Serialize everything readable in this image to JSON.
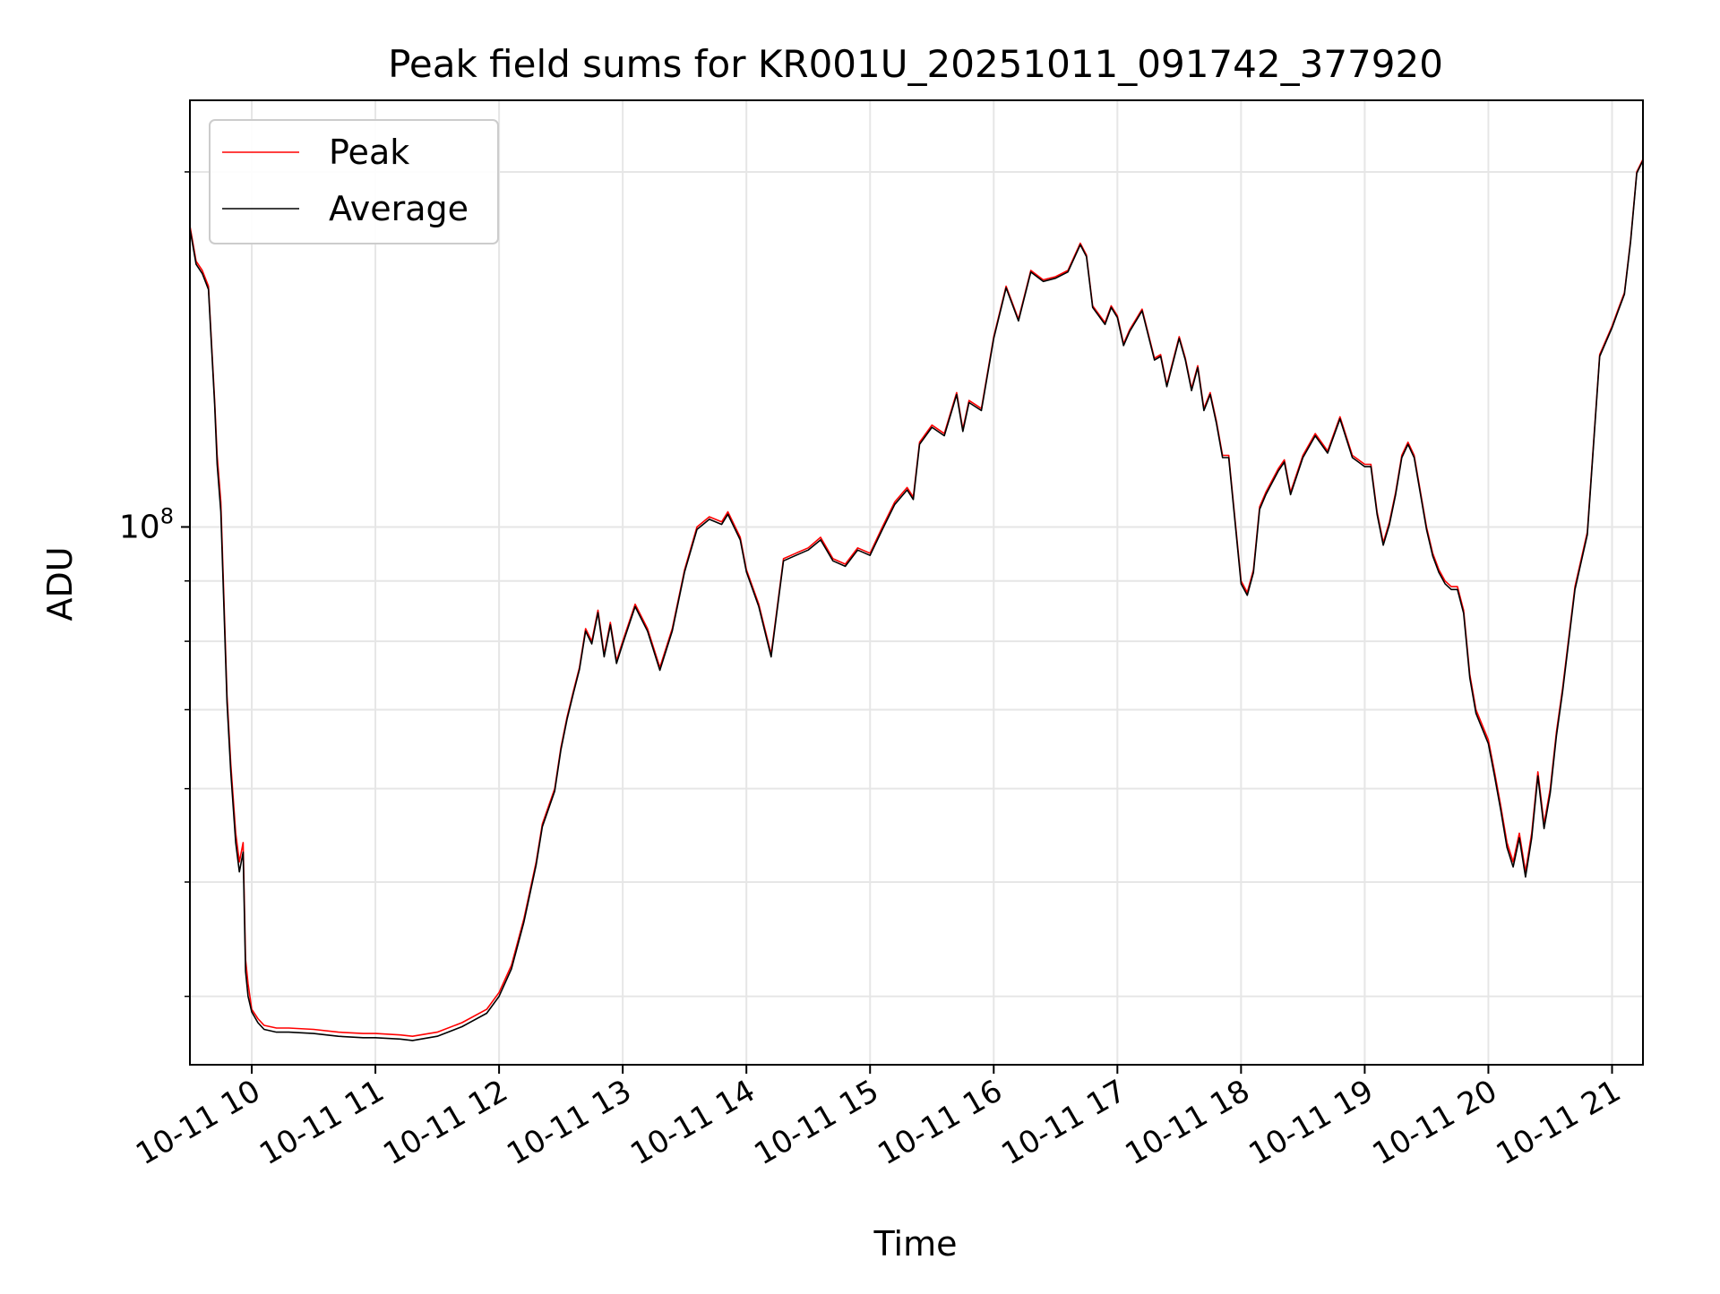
{
  "chart_data": {
    "type": "line",
    "title": "Peak field sums for KR001U_20251011_091742_377920",
    "xlabel": "Time",
    "ylabel": "ADU",
    "yscale": "log",
    "ylim": [
      35000000,
      230000000
    ],
    "xlim": [
      9.5,
      21.25
    ],
    "x_ticks": [
      10,
      11,
      12,
      13,
      14,
      15,
      16,
      17,
      18,
      19,
      20,
      21
    ],
    "x_tick_labels": [
      "10-11 10",
      "10-11 11",
      "10-11 12",
      "10-11 13",
      "10-11 14",
      "10-11 15",
      "10-11 16",
      "10-11 17",
      "10-11 18",
      "10-11 19",
      "10-11 20",
      "10-11 21"
    ],
    "y_major_ticks": [
      100000000
    ],
    "y_major_tick_labels": [
      "10",
      "8"
    ],
    "y_minor_ticks": [
      40000000,
      50000000,
      60000000,
      70000000,
      80000000,
      90000000,
      200000000
    ],
    "grid": true,
    "legend_position": "top-left",
    "series": [
      {
        "name": "Peak",
        "color": "#ff0000",
        "x": [
          9.5,
          9.55,
          9.6,
          9.65,
          9.7,
          9.72,
          9.75,
          9.8,
          9.83,
          9.87,
          9.9,
          9.93,
          9.95,
          9.97,
          10.0,
          10.05,
          10.1,
          10.2,
          10.3,
          10.5,
          10.7,
          10.9,
          11.0,
          11.2,
          11.3,
          11.5,
          11.7,
          11.9,
          12.0,
          12.1,
          12.2,
          12.3,
          12.35,
          12.45,
          12.5,
          12.55,
          12.6,
          12.65,
          12.7,
          12.75,
          12.8,
          12.85,
          12.9,
          12.95,
          13.0,
          13.1,
          13.2,
          13.3,
          13.4,
          13.5,
          13.6,
          13.7,
          13.8,
          13.85,
          13.95,
          14.0,
          14.1,
          14.2,
          14.3,
          14.4,
          14.5,
          14.6,
          14.7,
          14.8,
          14.9,
          15.0,
          15.1,
          15.2,
          15.3,
          15.35,
          15.4,
          15.5,
          15.6,
          15.7,
          15.75,
          15.8,
          15.85,
          15.9,
          16.0,
          16.1,
          16.2,
          16.3,
          16.4,
          16.5,
          16.6,
          16.7,
          16.75,
          16.8,
          16.9,
          16.95,
          17.0,
          17.05,
          17.1,
          17.2,
          17.3,
          17.35,
          17.4,
          17.5,
          17.55,
          17.6,
          17.65,
          17.7,
          17.75,
          17.8,
          17.85,
          17.9,
          18.0,
          18.05,
          18.1,
          18.15,
          18.2,
          18.3,
          18.35,
          18.4,
          18.5,
          18.6,
          18.7,
          18.8,
          18.9,
          18.95,
          19.0,
          19.05,
          19.1,
          19.15,
          19.2,
          19.25,
          19.3,
          19.35,
          19.4,
          19.5,
          19.55,
          19.6,
          19.65,
          19.7,
          19.75,
          19.8,
          19.85,
          19.9,
          20.0,
          20.05,
          20.1,
          20.15,
          20.2,
          20.25,
          20.3,
          20.35,
          20.4,
          20.45,
          20.5,
          20.55,
          20.6,
          20.7,
          20.8,
          20.9,
          21.0,
          21.05,
          21.1,
          21.15,
          21.2,
          21.25
        ],
        "values": [
          180000000,
          168000000,
          165000000,
          160000000,
          128000000,
          115000000,
          105000000,
          72000000,
          63000000,
          55000000,
          52000000,
          54000000,
          43000000,
          41000000,
          39000000,
          38300000,
          37800000,
          37600000,
          37600000,
          37500000,
          37300000,
          37200000,
          37200000,
          37100000,
          37000000,
          37300000,
          38000000,
          39000000,
          40300000,
          42500000,
          46500000,
          52000000,
          56000000,
          60000000,
          65000000,
          69000000,
          72500000,
          76000000,
          82000000,
          80000000,
          85000000,
          78000000,
          83000000,
          77000000,
          80000000,
          86000000,
          82000000,
          76000000,
          82000000,
          92000000,
          100000000,
          102000000,
          101000000,
          103000000,
          98000000,
          92000000,
          86000000,
          78000000,
          94000000,
          95000000,
          96000000,
          98000000,
          94000000,
          93000000,
          96000000,
          95000000,
          100000000,
          105000000,
          108000000,
          106000000,
          118000000,
          122000000,
          120000000,
          130000000,
          121000000,
          128000000,
          127000000,
          126000000,
          145000000,
          160000000,
          150000000,
          165000000,
          162000000,
          163000000,
          165000000,
          174000000,
          170000000,
          154000000,
          149000000,
          154000000,
          151000000,
          143000000,
          147000000,
          153000000,
          139000000,
          140000000,
          132000000,
          145000000,
          139000000,
          131000000,
          137000000,
          126000000,
          130000000,
          123000000,
          115000000,
          115000000,
          90000000,
          88000000,
          92000000,
          104000000,
          107000000,
          112000000,
          114000000,
          107000000,
          115000000,
          120000000,
          116000000,
          124000000,
          115000000,
          114000000,
          113000000,
          113000000,
          103000000,
          97000000,
          101000000,
          107000000,
          115000000,
          118000000,
          115000000,
          100000000,
          95000000,
          92000000,
          90000000,
          89000000,
          89000000,
          85000000,
          75000000,
          70000000,
          66000000,
          62000000,
          58000000,
          54000000,
          52000000,
          55000000,
          51000000,
          55000000,
          62000000,
          56000000,
          60000000,
          67000000,
          73000000,
          89000000,
          99000000,
          140000000,
          148000000,
          153000000,
          158000000,
          175000000,
          200000000,
          205000000
        ],
        "point_count": 162
      },
      {
        "name": "Average",
        "color": "#000000",
        "x": [
          9.5,
          9.55,
          9.6,
          9.65,
          9.7,
          9.72,
          9.75,
          9.8,
          9.83,
          9.87,
          9.9,
          9.93,
          9.95,
          9.97,
          10.0,
          10.05,
          10.1,
          10.2,
          10.3,
          10.5,
          10.7,
          10.9,
          11.0,
          11.2,
          11.3,
          11.5,
          11.7,
          11.9,
          12.0,
          12.1,
          12.2,
          12.3,
          12.35,
          12.45,
          12.5,
          12.55,
          12.6,
          12.65,
          12.7,
          12.75,
          12.8,
          12.85,
          12.9,
          12.95,
          13.0,
          13.1,
          13.2,
          13.3,
          13.4,
          13.5,
          13.6,
          13.7,
          13.8,
          13.85,
          13.95,
          14.0,
          14.1,
          14.2,
          14.3,
          14.4,
          14.5,
          14.6,
          14.7,
          14.8,
          14.9,
          15.0,
          15.1,
          15.2,
          15.3,
          15.35,
          15.4,
          15.5,
          15.6,
          15.7,
          15.75,
          15.8,
          15.85,
          15.9,
          16.0,
          16.1,
          16.2,
          16.3,
          16.4,
          16.5,
          16.6,
          16.7,
          16.75,
          16.8,
          16.9,
          16.95,
          17.0,
          17.05,
          17.1,
          17.2,
          17.3,
          17.35,
          17.4,
          17.5,
          17.55,
          17.6,
          17.65,
          17.7,
          17.75,
          17.8,
          17.85,
          17.9,
          18.0,
          18.05,
          18.1,
          18.15,
          18.2,
          18.3,
          18.35,
          18.4,
          18.5,
          18.6,
          18.7,
          18.8,
          18.9,
          18.95,
          19.0,
          19.05,
          19.1,
          19.15,
          19.2,
          19.25,
          19.3,
          19.35,
          19.4,
          19.5,
          19.55,
          19.6,
          19.65,
          19.7,
          19.75,
          19.8,
          19.85,
          19.9,
          20.0,
          20.05,
          20.1,
          20.15,
          20.2,
          20.25,
          20.3,
          20.35,
          20.4,
          20.45,
          20.5,
          20.55,
          20.6,
          20.7,
          20.8,
          20.9,
          21.0,
          21.05,
          21.1,
          21.15,
          21.2,
          21.25
        ],
        "values": [
          179000000,
          167000000,
          164000000,
          159000000,
          127000000,
          113000000,
          103000000,
          71000000,
          62000000,
          54000000,
          51000000,
          53000000,
          42000000,
          40000000,
          38800000,
          38000000,
          37500000,
          37300000,
          37300000,
          37200000,
          37000000,
          36900000,
          36900000,
          36800000,
          36700000,
          37000000,
          37700000,
          38700000,
          40000000,
          42200000,
          46200000,
          51700000,
          55700000,
          59700000,
          64700000,
          68700000,
          72200000,
          75700000,
          81600000,
          79600000,
          84600000,
          77600000,
          82600000,
          76600000,
          79600000,
          85600000,
          81600000,
          75600000,
          81600000,
          91600000,
          99500000,
          101500000,
          100500000,
          102500000,
          97500000,
          91600000,
          85600000,
          77600000,
          93600000,
          94600000,
          95600000,
          97500000,
          93600000,
          92600000,
          95600000,
          94600000,
          99500000,
          104500000,
          107500000,
          105500000,
          117500000,
          121500000,
          119500000,
          129500000,
          120500000,
          127500000,
          126500000,
          125500000,
          144500000,
          159500000,
          149500000,
          164500000,
          161500000,
          162500000,
          164500000,
          173500000,
          169500000,
          153500000,
          148500000,
          153500000,
          150500000,
          142500000,
          146500000,
          152500000,
          138500000,
          139500000,
          131500000,
          144500000,
          138500000,
          130500000,
          136500000,
          125500000,
          129500000,
          122500000,
          114500000,
          114500000,
          89500000,
          87500000,
          91500000,
          103500000,
          106500000,
          111500000,
          113500000,
          106500000,
          114500000,
          119500000,
          115500000,
          123500000,
          114500000,
          113500000,
          112500000,
          112500000,
          102500000,
          96500000,
          100500000,
          106500000,
          114500000,
          117500000,
          114500000,
          99500000,
          94500000,
          91500000,
          89500000,
          88500000,
          88500000,
          84500000,
          74500000,
          69500000,
          65500000,
          61500000,
          57500000,
          53500000,
          51500000,
          54500000,
          50500000,
          54500000,
          61500000,
          55500000,
          59500000,
          66500000,
          72500000,
          88500000,
          98500000,
          139500000,
          147500000,
          152500000,
          157500000,
          174500000,
          199500000,
          204500000
        ],
        "point_count": 162
      }
    ]
  }
}
